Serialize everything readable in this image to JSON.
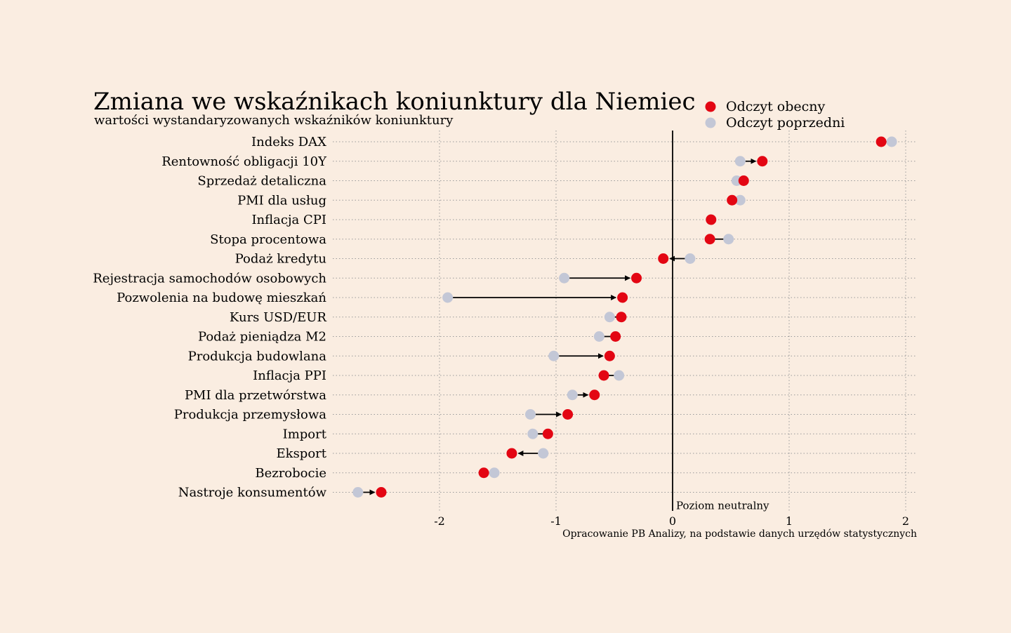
{
  "chart_data": {
    "type": "dot-arrow",
    "title": "Zmiana we wskaźnikach koniunktury dla Niemiec",
    "subtitle": "wartości wystandaryzowanych wskaźników koniunktury",
    "source": "Opracowanie PB Analizy, na podstawie danych urzędów statystycznych",
    "annotation": "Poziom neutralny",
    "xlim": [
      -2.9,
      2.05
    ],
    "xticks": [
      -2,
      -1,
      0,
      1,
      2
    ],
    "xtick_labels": [
      "-2",
      "-1",
      "0",
      "1",
      "2"
    ],
    "grid": true,
    "legend_position": "top-right",
    "colors": {
      "current": "#e30613",
      "previous": "#c3c7d6",
      "background": "#faede1",
      "arrow": "#000000"
    },
    "series": [
      {
        "name": "Odczyt obecny",
        "key": "current"
      },
      {
        "name": "Odczyt poprzedni",
        "key": "previous"
      }
    ],
    "categories": [
      "Indeks DAX",
      "Rentowność obligacji 10Y",
      "Sprzedaż detaliczna",
      "PMI dla usług",
      "Inflacja CPI",
      "Stopa procentowa",
      "Podaż kredytu",
      "Rejestracja samochodów osobowych",
      "Pozwolenia na budowę mieszkań",
      "Kurs USD/EUR",
      "Podaż pieniądza M2",
      "Produkcja budowlana",
      "Inflacja PPI",
      "PMI dla przetwórstwa",
      "Produkcja przemysłowa",
      "Import",
      "Eksport",
      "Bezrobocie",
      "Nastroje konsumentów"
    ],
    "current": [
      1.79,
      0.77,
      0.61,
      0.51,
      0.33,
      0.32,
      -0.08,
      -0.31,
      -0.43,
      -0.44,
      -0.49,
      -0.54,
      -0.59,
      -0.67,
      -0.9,
      -1.07,
      -1.38,
      -1.62,
      -2.5
    ],
    "previous": [
      1.88,
      0.58,
      0.55,
      0.58,
      0.33,
      0.48,
      0.15,
      -0.93,
      -1.93,
      -0.54,
      -0.63,
      -1.02,
      -0.46,
      -0.86,
      -1.22,
      -1.2,
      -1.11,
      -1.53,
      -2.7
    ]
  }
}
